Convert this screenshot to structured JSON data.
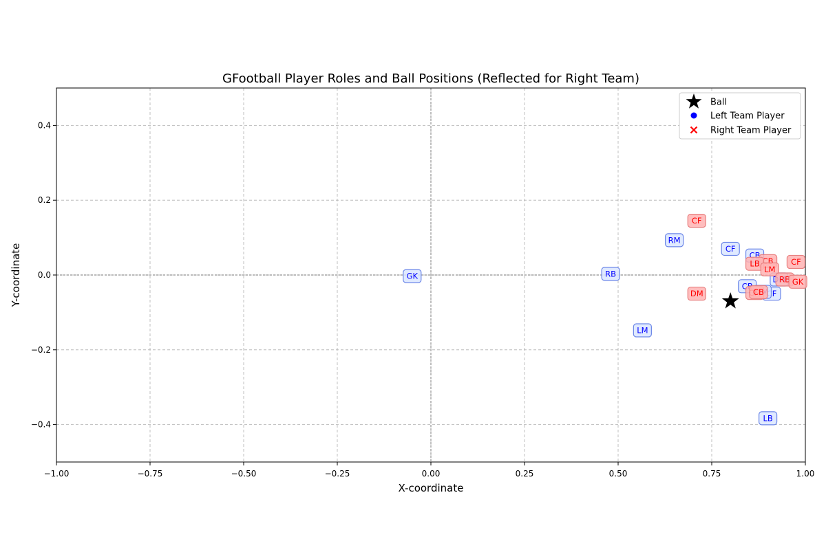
{
  "chart_data": {
    "type": "scatter",
    "title": "GFootball Player Roles and Ball Positions (Reflected for Right Team)",
    "xlabel": "X-coordinate",
    "ylabel": "Y-coordinate",
    "xlim": [
      -1.0,
      1.0
    ],
    "ylim": [
      -0.5,
      0.5
    ],
    "xticks": [
      -1.0,
      -0.75,
      -0.5,
      -0.25,
      0.0,
      0.25,
      0.5,
      0.75,
      1.0
    ],
    "xtick_labels": [
      "−1.00",
      "−0.75",
      "−0.50",
      "−0.25",
      "0.00",
      "0.25",
      "0.50",
      "0.75",
      "1.00"
    ],
    "yticks": [
      -0.4,
      -0.2,
      0.0,
      0.2,
      0.4
    ],
    "ytick_labels": [
      "−0.4",
      "−0.2",
      "0.0",
      "0.2",
      "0.4"
    ],
    "grid": true,
    "legend_position": "top-right",
    "legend": [
      "Ball",
      "Left Team Player",
      "Right Team Player"
    ],
    "ball": {
      "name": "Ball",
      "x": 0.8,
      "y": -0.07,
      "color": "#000000",
      "marker": "star"
    },
    "series": [
      {
        "name": "Left Team Player",
        "color": "#0000ff",
        "box_fill": "#dbe6ff",
        "box_edge": "#6b86e8",
        "points": [
          {
            "role": "GK",
            "x": -0.05,
            "y": -0.003
          },
          {
            "role": "RB",
            "x": 0.48,
            "y": 0.003
          },
          {
            "role": "RM",
            "x": 0.65,
            "y": 0.093
          },
          {
            "role": "CF",
            "x": 0.8,
            "y": 0.07
          },
          {
            "role": "CB",
            "x": 0.865,
            "y": 0.052
          },
          {
            "role": "CB",
            "x": 0.845,
            "y": -0.03
          },
          {
            "role": "CF",
            "x": 0.91,
            "y": -0.05
          },
          {
            "role": "DM",
            "x": 0.93,
            "y": -0.012
          },
          {
            "role": "CM",
            "x": 0.885,
            "y": -0.045
          },
          {
            "role": "LM",
            "x": 0.565,
            "y": -0.148
          },
          {
            "role": "LB",
            "x": 0.9,
            "y": -0.383
          }
        ]
      },
      {
        "name": "Right Team Player",
        "color": "#ff0000",
        "box_fill": "#ffb3b3",
        "box_edge": "#e88080",
        "points": [
          {
            "role": "CF",
            "x": 0.71,
            "y": 0.145
          },
          {
            "role": "CB",
            "x": 0.9,
            "y": 0.037
          },
          {
            "role": "LB",
            "x": 0.865,
            "y": 0.03
          },
          {
            "role": "LM",
            "x": 0.905,
            "y": 0.015
          },
          {
            "role": "CF",
            "x": 0.975,
            "y": 0.035
          },
          {
            "role": "RB",
            "x": 0.945,
            "y": -0.012
          },
          {
            "role": "GK",
            "x": 0.98,
            "y": -0.018
          },
          {
            "role": "DM",
            "x": 0.71,
            "y": -0.05
          },
          {
            "role": "CM",
            "x": 0.865,
            "y": -0.048
          },
          {
            "role": "CB",
            "x": 0.875,
            "y": -0.046
          }
        ]
      }
    ]
  }
}
